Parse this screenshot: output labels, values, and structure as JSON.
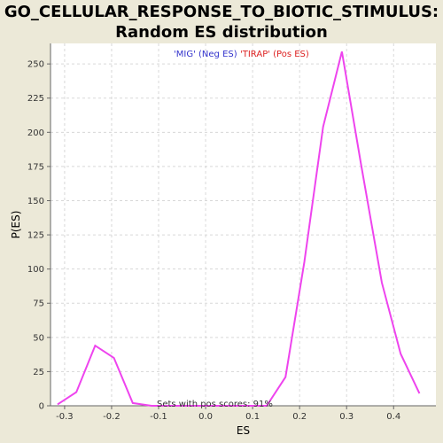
{
  "chart_data": {
    "type": "line",
    "title_line1": "GO_CELLULAR_RESPONSE_TO_BIOTIC_STIMULUS:",
    "title_line2": "Random ES distribution",
    "xlabel": "ES",
    "ylabel": "P(ES)",
    "xlim": [
      -0.33,
      0.49
    ],
    "ylim": [
      0,
      265
    ],
    "xticks": [
      -0.3,
      -0.2,
      -0.1,
      0.0,
      0.1,
      0.2,
      0.3,
      0.4
    ],
    "xtick_labels": [
      "-0.3",
      "-0.2",
      "-0.1",
      "0.0",
      "0.1",
      "0.2",
      "0.3",
      "0.4"
    ],
    "yticks": [
      0,
      25,
      50,
      75,
      100,
      125,
      150,
      175,
      200,
      225,
      250
    ],
    "ytick_labels": [
      "0",
      "25",
      "50",
      "75",
      "100",
      "125",
      "150",
      "175",
      "200",
      "225",
      "250"
    ],
    "grid": true,
    "legend": {
      "neg_label": "'MIG' (Neg ES)",
      "pos_label": "'TIRAP' (Pos ES)",
      "neg_color": "#3333cc",
      "pos_color": "#dd2222",
      "placement": "top-center"
    },
    "annotation": "Sets with pos scores: 91%",
    "series": [
      {
        "name": "distribution",
        "color": "#ee44ee",
        "x": [
          -0.315,
          -0.275,
          -0.235,
          -0.195,
          -0.155,
          -0.115,
          -0.075,
          -0.035,
          0.005,
          0.045,
          0.085,
          0.13,
          0.17,
          0.21,
          0.25,
          0.29,
          0.33,
          0.375,
          0.415,
          0.455
        ],
        "y": [
          1,
          10,
          44,
          35,
          2,
          0,
          0,
          0,
          0,
          0,
          0,
          0,
          21,
          105,
          204,
          259,
          178,
          90,
          38,
          9
        ]
      }
    ]
  }
}
